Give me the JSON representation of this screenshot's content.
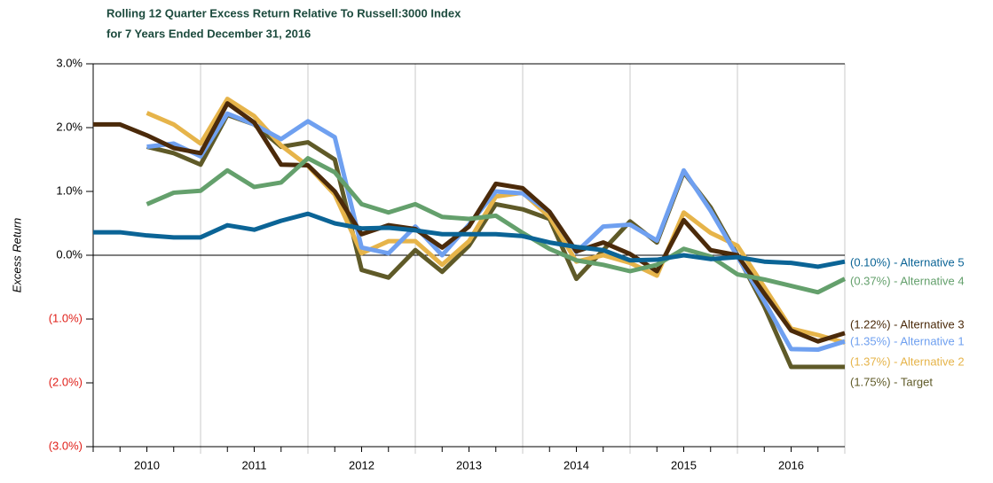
{
  "chart_data": {
    "type": "line",
    "title": "Rolling 12 Quarter Excess Return Relative To Russell:3000 Index",
    "subtitle": "for 7 Years Ended December 31, 2016",
    "y_label": "Excess Return",
    "categories": [
      null,
      null,
      "2010",
      null,
      null,
      null,
      "2011",
      null,
      null,
      null,
      "2012",
      null,
      null,
      null,
      "2013",
      null,
      null,
      null,
      "2014",
      null,
      null,
      null,
      "2015",
      null,
      null,
      null,
      "2016",
      null,
      null
    ],
    "ylim": [
      -3,
      3
    ],
    "yticks": [
      {
        "value": 3,
        "label": "3.0%"
      },
      {
        "value": 2,
        "label": "2.0%"
      },
      {
        "value": 1,
        "label": "1.0%"
      },
      {
        "value": 0,
        "label": "0.0%"
      },
      {
        "value": -1,
        "label": "(1.0%)"
      },
      {
        "value": -2,
        "label": "(2.0%)"
      },
      {
        "value": -3,
        "label": "(3.0%)"
      }
    ],
    "series": [
      {
        "name": "Alternative 5",
        "end_label": "(0.10%) - Alternative 5",
        "color": "#0b6496",
        "values": [
          0.36,
          0.36,
          0.31,
          0.28,
          0.28,
          0.47,
          0.4,
          0.54,
          0.65,
          0.5,
          0.42,
          0.43,
          0.39,
          0.33,
          0.33,
          0.33,
          0.3,
          0.2,
          0.13,
          0.08,
          -0.08,
          -0.07,
          0.0,
          -0.06,
          -0.03,
          -0.1,
          -0.12,
          -0.18,
          -0.1
        ]
      },
      {
        "name": "Alternative 4",
        "end_label": "(0.37%) - Alternative 4",
        "color": "#64a06c",
        "values": [
          null,
          null,
          0.8,
          0.98,
          1.01,
          1.33,
          1.07,
          1.14,
          1.52,
          1.3,
          0.8,
          0.67,
          0.8,
          0.6,
          0.57,
          0.62,
          0.35,
          0.1,
          -0.08,
          -0.15,
          -0.25,
          -0.15,
          0.1,
          -0.02,
          -0.3,
          -0.38,
          -0.48,
          -0.58,
          -0.37
        ]
      },
      {
        "name": "Alternative 3",
        "end_label": "(1.22%) - Alternative 3",
        "color": "#4b2a0a",
        "values": [
          2.05,
          2.05,
          1.88,
          1.68,
          1.6,
          2.38,
          2.08,
          1.42,
          1.41,
          1.0,
          0.33,
          0.47,
          0.41,
          0.12,
          0.45,
          1.12,
          1.05,
          0.68,
          0.06,
          0.2,
          0.02,
          -0.25,
          0.55,
          0.08,
          0.0,
          -0.6,
          -1.18,
          -1.35,
          -1.22
        ]
      },
      {
        "name": "Alternative 1",
        "end_label": "(1.35%) - Alternative 1",
        "color": "#6fa0f0",
        "values": [
          null,
          null,
          1.7,
          1.75,
          1.55,
          2.22,
          2.05,
          1.82,
          2.1,
          1.85,
          0.12,
          0.03,
          0.45,
          0.0,
          0.48,
          1.0,
          0.97,
          0.68,
          0.05,
          0.45,
          0.48,
          0.23,
          1.33,
          0.7,
          -0.02,
          -0.72,
          -1.47,
          -1.48,
          -1.35
        ]
      },
      {
        "name": "Alternative 2",
        "end_label": "(1.37%) - Alternative 2",
        "color": "#e6b44a",
        "values": [
          null,
          null,
          2.23,
          2.05,
          1.75,
          2.45,
          2.18,
          1.72,
          1.4,
          0.95,
          0.03,
          0.22,
          0.22,
          -0.15,
          0.22,
          0.92,
          0.98,
          0.6,
          -0.1,
          0.0,
          -0.12,
          -0.32,
          0.67,
          0.35,
          0.15,
          -0.5,
          -1.15,
          -1.25,
          -1.37
        ]
      },
      {
        "name": "Target",
        "end_label": "(1.75%) - Target",
        "color": "#5f5a28",
        "values": [
          null,
          null,
          1.7,
          1.6,
          1.42,
          2.2,
          2.05,
          1.7,
          1.77,
          1.5,
          -0.23,
          -0.35,
          0.08,
          -0.26,
          0.15,
          0.8,
          0.72,
          0.57,
          -0.37,
          0.08,
          0.53,
          0.2,
          1.3,
          0.75,
          0.0,
          -0.8,
          -1.75,
          -1.75,
          -1.75
        ]
      }
    ]
  }
}
